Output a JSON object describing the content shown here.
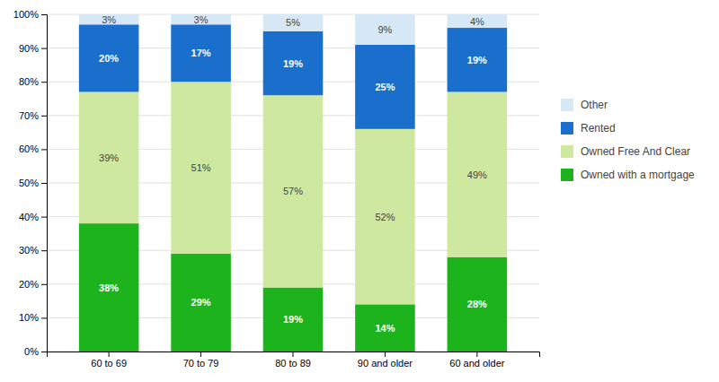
{
  "chart_data": {
    "type": "bar",
    "stacked": true,
    "categories": [
      "60 to 69",
      "70 to 79",
      "80 to 89",
      "90 and older",
      "60 and older"
    ],
    "series": [
      {
        "name": "Owned with a mortgage",
        "color": "#1db31d",
        "values": [
          38,
          29,
          19,
          14,
          28
        ],
        "value_labels": [
          "38%",
          "29%",
          "19%",
          "14%",
          "28%"
        ]
      },
      {
        "name": "Owned Free And Clear",
        "color": "#cfe8a0",
        "values": [
          39,
          51,
          57,
          52,
          49
        ],
        "value_labels": [
          "39%",
          "51%",
          "57%",
          "52%",
          "49%"
        ]
      },
      {
        "name": "Rented",
        "color": "#1a6fcc",
        "values": [
          20,
          17,
          19,
          25,
          19
        ],
        "value_labels": [
          "20%",
          "17%",
          "19%",
          "25%",
          "19%"
        ]
      },
      {
        "name": "Other",
        "color": "#d6e8f5",
        "values": [
          3,
          3,
          5,
          9,
          4
        ],
        "value_labels": [
          "3%",
          "3%",
          "5%",
          "9%",
          "4%"
        ]
      }
    ],
    "ylim": [
      0,
      100
    ],
    "yticks": [
      {
        "value": 0,
        "label": "0%"
      },
      {
        "value": 10,
        "label": "10%"
      },
      {
        "value": 20,
        "label": "20%"
      },
      {
        "value": 30,
        "label": "30%"
      },
      {
        "value": 40,
        "label": "40%"
      },
      {
        "value": 50,
        "label": "50%"
      },
      {
        "value": 60,
        "label": "60%"
      },
      {
        "value": 70,
        "label": "70%"
      },
      {
        "value": 80,
        "label": "80%"
      },
      {
        "value": 90,
        "label": "90%"
      },
      {
        "value": 100,
        "label": "100%"
      }
    ],
    "grid": true,
    "legend": "right",
    "data_labels": true
  }
}
